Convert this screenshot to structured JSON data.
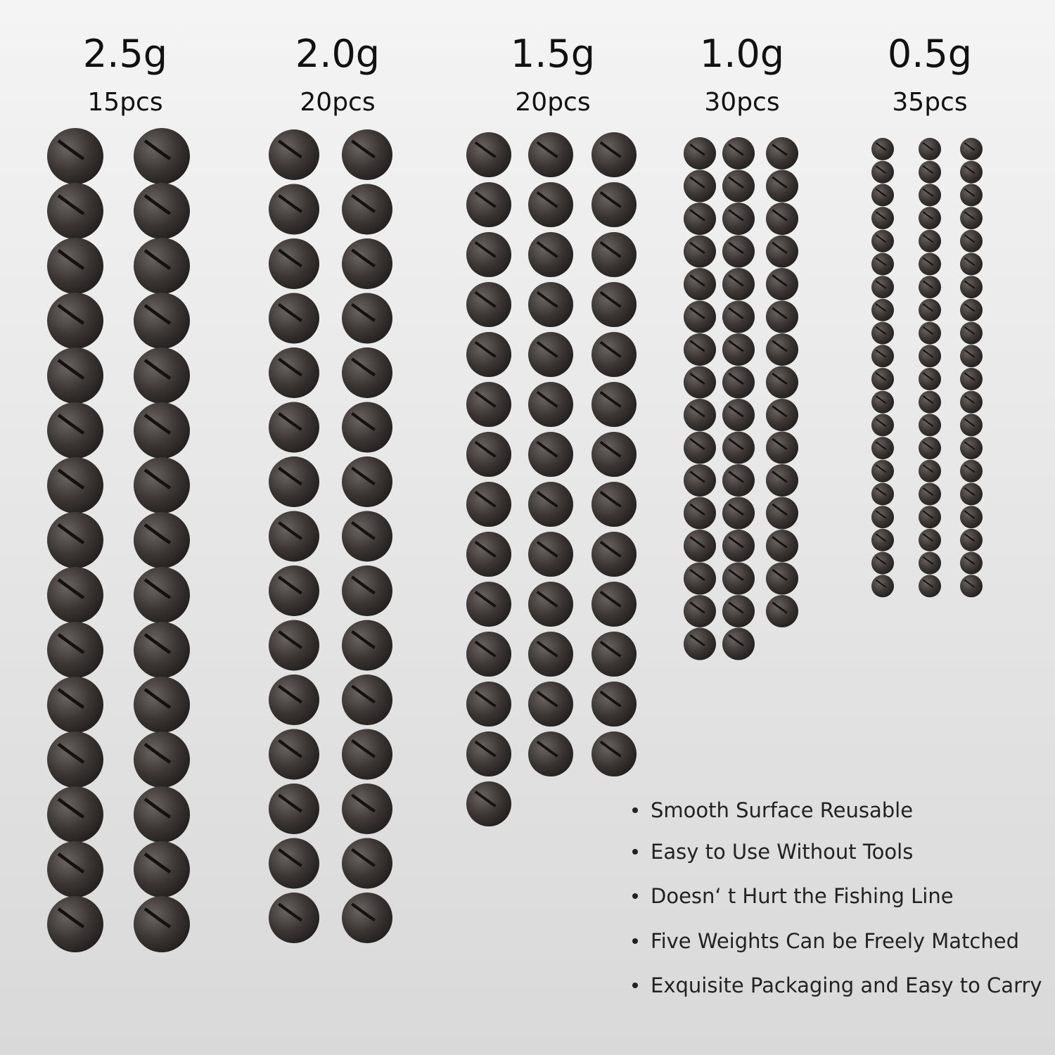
{
  "groups": [
    {
      "weight": "2.5g",
      "count": "15pcs"
    },
    {
      "weight": "2.0g",
      "count": "20pcs"
    },
    {
      "weight": "1.5g",
      "count": "20pcs"
    },
    {
      "weight": "1.0g",
      "count": "30pcs"
    },
    {
      "weight": "0.5g",
      "count": "35pcs"
    }
  ],
  "features": [
    "Smooth Surface Reusable",
    "Easy to Use Without Tools",
    "Doesn‘ t Hurt the Fishing Line",
    "Five Weights Can be Freely Matched",
    "Exquisite Packaging and Easy to Carry"
  ]
}
